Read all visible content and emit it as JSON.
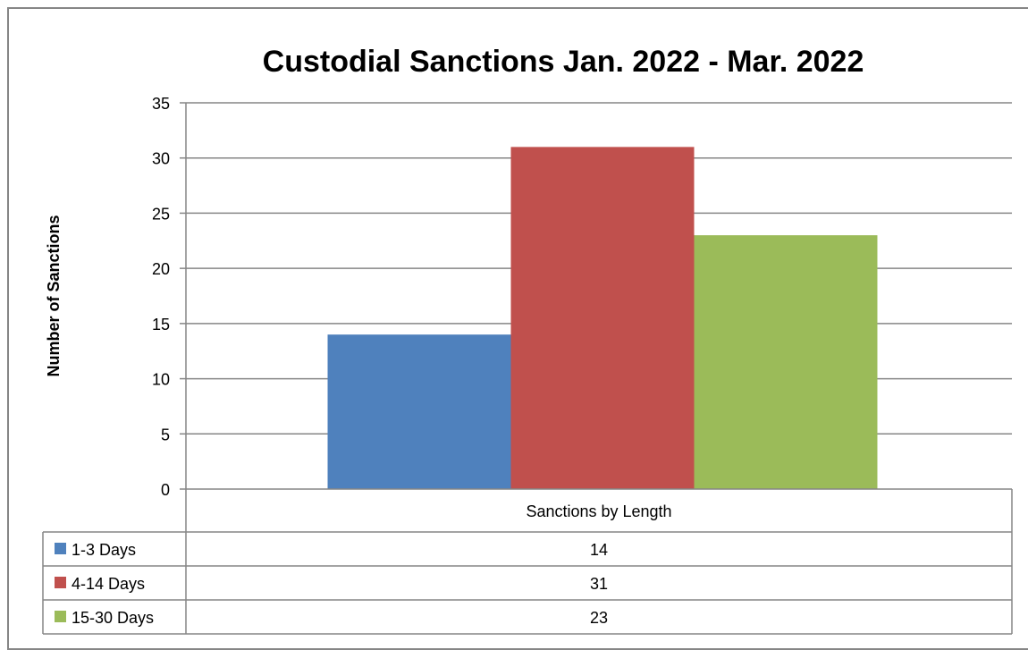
{
  "chart_data": {
    "type": "bar",
    "title": "Custodial Sanctions Jan. 2022 - Mar. 2022",
    "xlabel": "",
    "ylabel": "Number of Sanctions",
    "categories": [
      "Sanctions by Length"
    ],
    "series": [
      {
        "name": "1-3 Days",
        "values": [
          14
        ],
        "color": "#4F81BD"
      },
      {
        "name": "4-14 Days",
        "values": [
          31
        ],
        "color": "#C0504D"
      },
      {
        "name": "15-30 Days",
        "values": [
          23
        ],
        "color": "#9BBB59"
      }
    ],
    "yticks": [
      "0",
      "5",
      "10",
      "15",
      "20",
      "25",
      "30",
      "35"
    ],
    "ylim": [
      0,
      35
    ],
    "grid": true,
    "legend": "data-table"
  }
}
